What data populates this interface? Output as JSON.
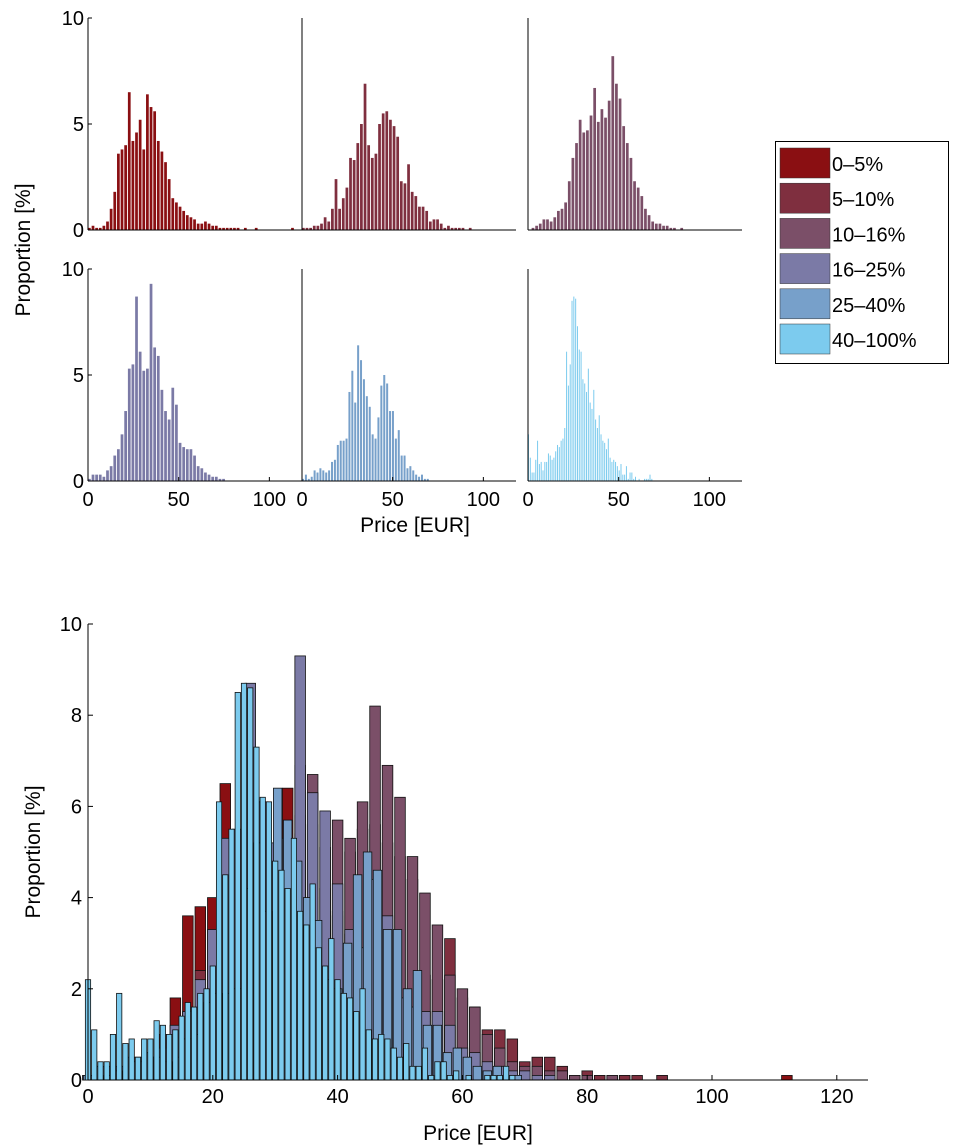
{
  "colors": {
    "0-5%": "#8a0f12",
    "5-10%": "#7f2f3f",
    "10-16%": "#7b4f68",
    "16-25%": "#7b7aa6",
    "25-40%": "#77a0ca",
    "40-100%": "#7ccbee"
  },
  "chart_data": [
    {
      "type": "bar",
      "description_role": "small-multiples histograms",
      "panels": [
        {
          "series": "0-5%",
          "row": 1,
          "col": 1
        },
        {
          "series": "5-10%",
          "row": 1,
          "col": 2
        },
        {
          "series": "10-16%",
          "row": 1,
          "col": 3
        },
        {
          "series": "16-25%",
          "row": 2,
          "col": 1
        },
        {
          "series": "25-40%",
          "row": 2,
          "col": 2
        },
        {
          "series": "40-100%",
          "row": 2,
          "col": 3
        }
      ],
      "xlabel": "Price [EUR]",
      "ylabel": "Proportion [%]",
      "xlim": [
        0,
        118
      ],
      "ylim": [
        0,
        10
      ],
      "xticks": [
        "0",
        "50",
        "100"
      ],
      "yticks": [
        "0",
        "5",
        "10"
      ],
      "series": [
        {
          "name": "0–5%",
          "key": "0-5%",
          "x": [
            0,
            2,
            4,
            6,
            8,
            10,
            12,
            14,
            16,
            18,
            20,
            22,
            24,
            26,
            28,
            30,
            32,
            34,
            36,
            38,
            40,
            42,
            44,
            46,
            48,
            50,
            52,
            54,
            56,
            58,
            60,
            62,
            64,
            66,
            68,
            70,
            72,
            74,
            76,
            78,
            80,
            82,
            84,
            86,
            88,
            90,
            92,
            94,
            96,
            98,
            100,
            102,
            104,
            106,
            108,
            110,
            112,
            114,
            116
          ],
          "values": [
            0.1,
            0.2,
            0.1,
            0.1,
            0.2,
            0.4,
            1.0,
            1.8,
            3.6,
            3.8,
            4.0,
            6.5,
            4.2,
            4.6,
            5.2,
            3.8,
            6.4,
            5.8,
            5.6,
            4.2,
            3.7,
            3.2,
            2.4,
            1.5,
            1.3,
            1.1,
            0.9,
            0.7,
            0.6,
            0.5,
            0.3,
            0.3,
            0.4,
            0.3,
            0.2,
            0.2,
            0.1,
            0.1,
            0.1,
            0.1,
            0.1,
            0.1,
            0.0,
            0.1,
            0.0,
            0.0,
            0.1,
            0.0,
            0.0,
            0.0,
            0.0,
            0.0,
            0.0,
            0.0,
            0.0,
            0.0,
            0.1,
            0.0,
            0.0
          ]
        },
        {
          "name": "5–10%",
          "key": "5-10%",
          "x": [
            0,
            2,
            4,
            6,
            8,
            10,
            12,
            14,
            16,
            18,
            20,
            22,
            24,
            26,
            28,
            30,
            32,
            34,
            36,
            38,
            40,
            42,
            44,
            46,
            48,
            50,
            52,
            54,
            56,
            58,
            60,
            62,
            64,
            66,
            68,
            70,
            72,
            74,
            76,
            78,
            80,
            82,
            84,
            86,
            88,
            90,
            92,
            94,
            96,
            98,
            100,
            102,
            104,
            106,
            108,
            110,
            112,
            114,
            116
          ],
          "values": [
            0.1,
            0.1,
            0.1,
            0.2,
            0.2,
            0.3,
            0.6,
            0.4,
            1.0,
            2.4,
            1.0,
            1.5,
            2.0,
            3.4,
            3.3,
            4.1,
            5.0,
            6.9,
            4.0,
            3.4,
            3.6,
            5.0,
            5.5,
            5.6,
            5.2,
            4.9,
            4.4,
            2.3,
            2.2,
            3.1,
            1.8,
            1.6,
            1.1,
            1.1,
            0.9,
            0.4,
            0.5,
            0.5,
            0.3,
            0.1,
            0.2,
            0.1,
            0.1,
            0.1,
            0.1,
            0.0,
            0.1,
            0.0,
            0.0,
            0.0,
            0.0,
            0.0,
            0.0,
            0.0,
            0.0,
            0.0,
            0.0,
            0.0,
            0.0
          ]
        },
        {
          "name": "10–16%",
          "key": "10-16%",
          "x": [
            0,
            2,
            4,
            6,
            8,
            10,
            12,
            14,
            16,
            18,
            20,
            22,
            24,
            26,
            28,
            30,
            32,
            34,
            36,
            38,
            40,
            42,
            44,
            46,
            48,
            50,
            52,
            54,
            56,
            58,
            60,
            62,
            64,
            66,
            68,
            70,
            72,
            74,
            76,
            78,
            80,
            82,
            84,
            86,
            88,
            90,
            92,
            94,
            96,
            98,
            100,
            102,
            104,
            106,
            108,
            110,
            112,
            114,
            116
          ],
          "values": [
            0.0,
            0.1,
            0.2,
            0.3,
            0.5,
            0.5,
            0.4,
            0.6,
            0.9,
            1.0,
            1.3,
            2.3,
            3.4,
            4.1,
            5.2,
            4.6,
            4.7,
            5.4,
            6.7,
            5.1,
            5.7,
            5.3,
            6.1,
            8.2,
            6.9,
            6.2,
            4.9,
            4.1,
            3.4,
            2.3,
            2.0,
            1.6,
            1.0,
            0.7,
            0.4,
            0.3,
            0.3,
            0.2,
            0.2,
            0.1,
            0.1,
            0.0,
            0.1,
            0.0,
            0.0,
            0.0,
            0.0,
            0.0,
            0.0,
            0.0,
            0.0,
            0.0,
            0.0,
            0.0,
            0.0,
            0.0,
            0.0,
            0.0,
            0.0
          ]
        },
        {
          "name": "16–25%",
          "key": "16-25%",
          "x": [
            0,
            2,
            4,
            6,
            8,
            10,
            12,
            14,
            16,
            18,
            20,
            22,
            24,
            26,
            28,
            30,
            32,
            34,
            36,
            38,
            40,
            42,
            44,
            46,
            48,
            50,
            52,
            54,
            56,
            58,
            60,
            62,
            64,
            66,
            68,
            70,
            72,
            74,
            76,
            78,
            80,
            82,
            84,
            86,
            88,
            90,
            92,
            94,
            96,
            98,
            100,
            102,
            104,
            106,
            108,
            110,
            112,
            114,
            116
          ],
          "values": [
            0.1,
            0.3,
            0.3,
            0.3,
            0.2,
            0.5,
            0.7,
            1.2,
            1.5,
            2.2,
            3.3,
            5.3,
            5.5,
            8.7,
            6.1,
            5.2,
            5.3,
            9.3,
            6.3,
            5.9,
            4.3,
            3.3,
            2.9,
            4.4,
            3.6,
            1.8,
            1.6,
            1.5,
            1.5,
            1.2,
            0.7,
            0.6,
            0.4,
            0.3,
            0.2,
            0.2,
            0.1,
            0.1,
            0.0,
            0.0,
            0.0,
            0.0,
            0.0,
            0.0,
            0.0,
            0.0,
            0.0,
            0.0,
            0.0,
            0.0,
            0.0,
            0.0,
            0.0,
            0.0,
            0.0,
            0.0,
            0.0,
            0.0,
            0.0
          ]
        },
        {
          "name": "25–40%",
          "key": "25-40%",
          "x": [
            0,
            1.6,
            3.2,
            4.8,
            6.4,
            8,
            9.6,
            11.2,
            12.8,
            14.4,
            16,
            17.6,
            19.2,
            20.8,
            22.4,
            24,
            25.6,
            27.2,
            28.8,
            30.4,
            32,
            33.6,
            35.2,
            36.8,
            38.4,
            40,
            41.6,
            43.2,
            44.8,
            46.4,
            48,
            49.6,
            51.2,
            52.8,
            54.4,
            56,
            57.6,
            59.2,
            60.8,
            62.4,
            64,
            65.6,
            67.2,
            68.8
          ],
          "values": [
            0.1,
            0.3,
            0.1,
            0.2,
            0.5,
            0.4,
            0.6,
            0.5,
            0.4,
            0.5,
            0.9,
            1.0,
            1.7,
            1.9,
            1.9,
            2.0,
            4.2,
            5.2,
            3.7,
            6.4,
            5.7,
            4.8,
            4.0,
            3.5,
            2.2,
            2.0,
            3.0,
            4.5,
            5.0,
            4.6,
            3.3,
            3.3,
            2.0,
            2.4,
            1.2,
            1.2,
            0.6,
            0.7,
            0.5,
            0.3,
            0.2,
            0.3,
            0.1,
            0.1
          ]
        },
        {
          "name": "40–100%",
          "key": "40-100%",
          "x": [
            0,
            1,
            2,
            3,
            4,
            5,
            6,
            7,
            8,
            9,
            10,
            11,
            12,
            13,
            14,
            15,
            16,
            17,
            18,
            19,
            20,
            21,
            22,
            23,
            24,
            25,
            26,
            27,
            28,
            29,
            30,
            31,
            32,
            33,
            34,
            35,
            36,
            37,
            38,
            39,
            40,
            41,
            42,
            43,
            44,
            45,
            46,
            47,
            48,
            49,
            50,
            51,
            52,
            53,
            54,
            55,
            56,
            57,
            58,
            59,
            60,
            61,
            62,
            63,
            64,
            65,
            66,
            67,
            68,
            69,
            70
          ],
          "values": [
            2.2,
            1.1,
            0.4,
            0.4,
            1.0,
            1.9,
            0.8,
            0.9,
            0.5,
            0.9,
            0.9,
            1.3,
            1.2,
            1.0,
            1.1,
            1.4,
            1.7,
            1.6,
            1.9,
            2.0,
            2.5,
            6.1,
            4.5,
            5.5,
            8.5,
            8.7,
            8.6,
            7.3,
            6.2,
            6.1,
            4.8,
            4.6,
            4.2,
            5.3,
            3.7,
            3.4,
            4.3,
            2.9,
            2.5,
            3.1,
            2.2,
            1.9,
            1.8,
            1.5,
            2.0,
            1.1,
            0.9,
            1.0,
            0.9,
            0.7,
            0.5,
            0.8,
            0.3,
            0.3,
            0.7,
            0.1,
            0.4,
            0.4,
            0.1,
            0.2,
            0.0,
            0.1,
            0.0,
            0.0,
            0.1,
            0.1,
            0.1,
            0.3,
            0.1,
            0.0,
            0.0
          ]
        }
      ]
    },
    {
      "type": "bar",
      "description_role": "overlaid histograms",
      "xlabel": "Price [EUR]",
      "ylabel": "Proportion [%]",
      "xlim": [
        0,
        125
      ],
      "ylim": [
        0,
        10
      ],
      "xticks": [
        "0",
        "20",
        "40",
        "60",
        "80",
        "100",
        "120"
      ],
      "yticks": [
        "0",
        "2",
        "4",
        "6",
        "8",
        "10"
      ],
      "series_order": [
        "0-5%",
        "5-10%",
        "10-16%",
        "16-25%",
        "25-40%",
        "40-100%"
      ]
    }
  ],
  "legend": {
    "items": [
      {
        "key": "0-5%",
        "label": "0–5%"
      },
      {
        "key": "5-10%",
        "label": "5–10%"
      },
      {
        "key": "10-16%",
        "label": "10–16%"
      },
      {
        "key": "16-25%",
        "label": "16–25%"
      },
      {
        "key": "25-40%",
        "label": "25–40%"
      },
      {
        "key": "40-100%",
        "label": "40–100%"
      }
    ]
  }
}
